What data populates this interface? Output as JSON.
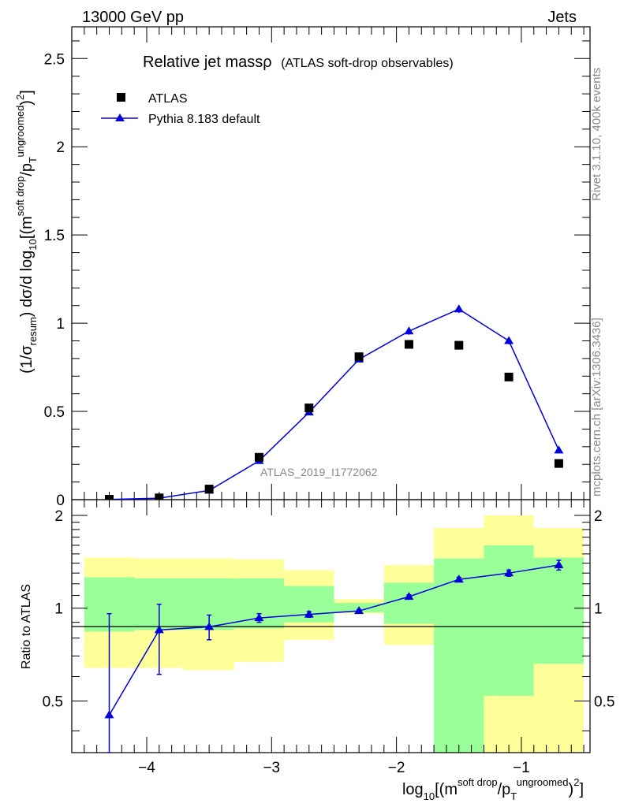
{
  "header": {
    "left": "13000 GeV pp",
    "right": "Jets"
  },
  "side_text": {
    "rivet": "Rivet 3.1.10,  400k events",
    "mcplots": "mcplots.cern.ch [arXiv:1306.3436]"
  },
  "colors": {
    "data": "#000000",
    "mc": "#0000dd",
    "band_inner": "#99ff99",
    "band_outer": "#ffff99",
    "watermark": "#888888"
  },
  "chart_data": [
    {
      "id": "main",
      "type": "scatter",
      "title": "Relative jet massρ",
      "subtitle": "(ATLAS soft-drop observables)",
      "ylabel": "(1/σresum) dσ/d log10[(m^soft drop/p_T^ungroomed)^2]",
      "ylabel_parts": {
        "a": "(1/σ",
        "sub1": "resum",
        "b": ") dσ/d log",
        "sub2": "10",
        "c": "[(m",
        "sup1": "soft drop",
        "d": "/p",
        "sub3": "T",
        "sup2": "ungroomed",
        "e": ")",
        "sup3": "2",
        "f": "]"
      },
      "watermark": "ATLAS_2019_I1772062",
      "xlim": [
        -4.6,
        -0.45
      ],
      "ylim": [
        0,
        2.68
      ],
      "yticks": [
        0,
        0.5,
        1,
        1.5,
        2,
        2.5
      ],
      "ytick_labels": [
        "0",
        "0.5",
        "1",
        "1.5",
        "2",
        "2.5"
      ],
      "legend": {
        "position": "top-left",
        "entries": [
          "ATLAS",
          "Pythia 8.183 default"
        ]
      },
      "series": [
        {
          "name": "ATLAS",
          "marker": "square",
          "x": [
            -4.3,
            -3.9,
            -3.5,
            -3.1,
            -2.7,
            -2.3,
            -1.9,
            -1.5,
            -1.1,
            -0.7
          ],
          "y": [
            0.002,
            0.01,
            0.06,
            0.24,
            0.52,
            0.81,
            0.88,
            0.875,
            0.695,
            0.205
          ]
        },
        {
          "name": "Pythia 8.183 default",
          "marker": "triangle",
          "x": [
            -4.3,
            -3.9,
            -3.5,
            -3.1,
            -2.7,
            -2.3,
            -1.9,
            -1.5,
            -1.1,
            -0.7
          ],
          "y": [
            0.0009,
            0.0085,
            0.052,
            0.22,
            0.495,
            0.795,
            0.955,
            1.08,
            0.9,
            0.28
          ],
          "yerr": [
            0.0005,
            0.002,
            0.004,
            0.008,
            0.012,
            0.016,
            0.02,
            0.022,
            0.02,
            0.01
          ]
        }
      ]
    },
    {
      "id": "ratio",
      "type": "scatter",
      "ylabel": "Ratio to ATLAS",
      "xlabel": "log10[(m^soft drop/p_T^ungroomed)^2]",
      "xlabel_parts": {
        "a": "log",
        "sub1": "10",
        "b": "[(m",
        "sup1": "soft drop",
        "c": "/p",
        "sub2": "T",
        "sup2": "ungroomed",
        "d": ")",
        "sup3": "2",
        "e": "]"
      },
      "xlim": [
        -4.6,
        -0.45
      ],
      "ylim": [
        0.34,
        2.25
      ],
      "yscale": "log",
      "xticks": [
        -4,
        -3,
        -2,
        -1
      ],
      "xtick_labels": [
        "−4",
        "−3",
        "−2",
        "−1"
      ],
      "yticks": [
        0.5,
        1,
        2
      ],
      "ytick_labels": [
        "0.5",
        "1",
        "2"
      ],
      "bins": [
        {
          "x0": -4.5,
          "x1": -4.1,
          "inner": [
            0.84,
            1.26
          ],
          "outer": [
            0.64,
            1.46
          ]
        },
        {
          "x0": -4.1,
          "x1": -3.7,
          "inner": [
            0.85,
            1.25
          ],
          "outer": [
            0.64,
            1.45
          ]
        },
        {
          "x0": -3.7,
          "x1": -3.3,
          "inner": [
            0.85,
            1.25
          ],
          "outer": [
            0.63,
            1.45
          ]
        },
        {
          "x0": -3.3,
          "x1": -2.9,
          "inner": [
            0.86,
            1.25
          ],
          "outer": [
            0.67,
            1.44
          ]
        },
        {
          "x0": -2.9,
          "x1": -2.5,
          "inner": [
            0.9,
            1.18
          ],
          "outer": [
            0.79,
            1.33
          ]
        },
        {
          "x0": -2.5,
          "x1": -2.1,
          "inner": [
            0.97,
            1.04
          ],
          "outer": [
            0.96,
            1.07
          ]
        },
        {
          "x0": -2.1,
          "x1": -1.7,
          "inner": [
            0.89,
            1.21
          ],
          "outer": [
            0.76,
            1.38
          ]
        },
        {
          "x0": -1.7,
          "x1": -1.3,
          "inner": [
            0.34,
            1.45
          ],
          "outer": [
            0.34,
            1.82
          ]
        },
        {
          "x0": -1.3,
          "x1": -0.9,
          "inner": [
            0.52,
            1.6
          ],
          "outer": [
            0.34,
            2.0
          ]
        },
        {
          "x0": -0.9,
          "x1": -0.5,
          "inner": [
            0.66,
            1.46
          ],
          "outer": [
            0.34,
            1.82
          ]
        }
      ],
      "series": [
        {
          "name": "Pythia 8.183 default",
          "x": [
            -4.3,
            -3.9,
            -3.5,
            -3.1,
            -2.7,
            -2.3,
            -1.9,
            -1.5,
            -1.1,
            -0.7
          ],
          "y": [
            0.45,
            0.85,
            0.87,
            0.93,
            0.955,
            0.98,
            1.09,
            1.24,
            1.3,
            1.38
          ],
          "yerr_lo": [
            0.11,
            0.24,
            0.08,
            0.03,
            0.02,
            0.01,
            0.015,
            0.02,
            0.03,
            0.05
          ],
          "yerr_hi": [
            0.51,
            0.18,
            0.08,
            0.03,
            0.02,
            0.01,
            0.015,
            0.02,
            0.03,
            0.05
          ]
        }
      ]
    }
  ]
}
